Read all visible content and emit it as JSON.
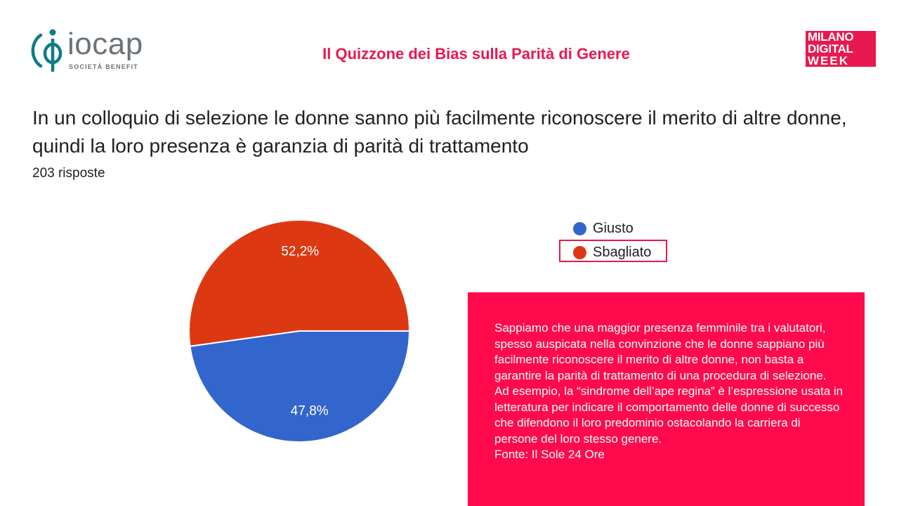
{
  "header": {
    "logo_left": {
      "word": "iocap",
      "subtitle": "SOCIETÀ BENEFIT",
      "color": "#0e7c86"
    },
    "title": "Il Quizzone dei Bias sulla Parità di Genere",
    "logo_right": {
      "line1": "MILANO",
      "line2": "DIGITAL",
      "line3": "WEEK",
      "color": "#e8194f"
    }
  },
  "question": {
    "text": "In un colloquio di selezione le donne sanno più facilmente riconoscere il merito di altre donne, quindi la loro presenza è garanzia di parità di trattamento",
    "responses": "203 risposte"
  },
  "chart_data": {
    "type": "pie",
    "categories": [
      "Giusto",
      "Sbagliato"
    ],
    "values": [
      47.8,
      52.2
    ],
    "labels": [
      "47,8%",
      "52,2%"
    ],
    "colors": [
      "#3366cc",
      "#dc3912"
    ],
    "legend_position": "right",
    "highlighted": "Sbagliato"
  },
  "info_box": {
    "text": "Sappiamo che una maggior presenza femminile tra i valutatori, spesso auspicata nella convinzione che le donne sappiano più facilmente riconoscere il merito di altre donne, non basta a garantire la parità di trattamento di una procedura di selezione.\nAd esempio, la “sindrome dell’ape regina” è l’espressione usata in letteratura per indicare il comportamento delle donne di successo che difendono il loro predominio ostacolando la carriera di persone del loro stesso genere.\nFonte: Il Sole 24 Ore",
    "background": "#ff0a4c"
  }
}
